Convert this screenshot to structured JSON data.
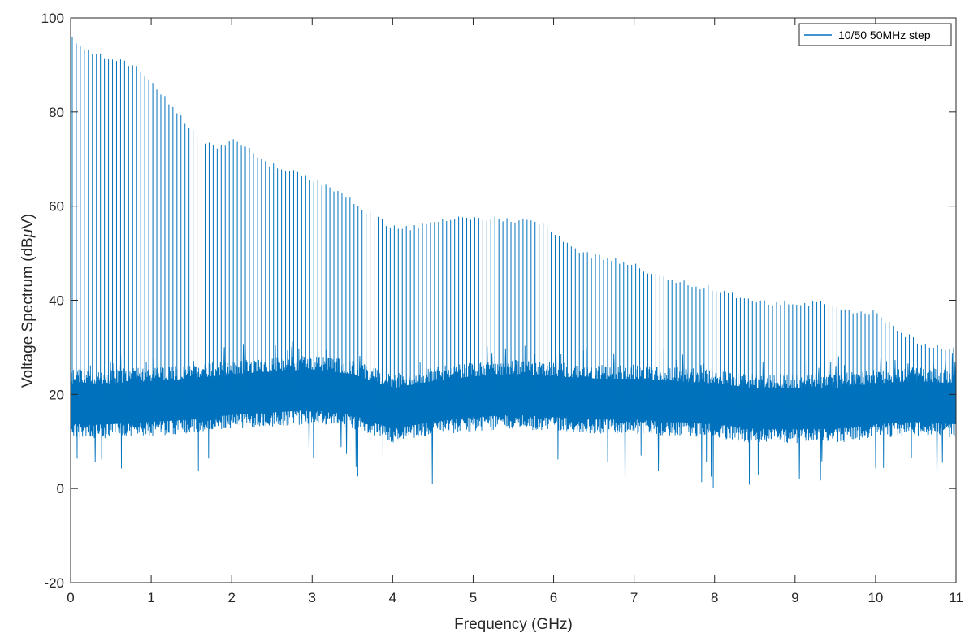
{
  "chart_data": {
    "type": "line",
    "title": "",
    "xlabel": "Frequency (GHz)",
    "ylabel_prefix": "Voltage Spectrum (dB",
    "ylabel_mu": "μ",
    "ylabel_suffix": "V)",
    "xlim": [
      0,
      11
    ],
    "ylim": [
      -20,
      100
    ],
    "x_ticks": [
      0,
      1,
      2,
      3,
      4,
      5,
      6,
      7,
      8,
      9,
      10,
      11
    ],
    "y_ticks": [
      -20,
      0,
      20,
      40,
      60,
      80,
      100
    ],
    "grid": false,
    "legend_position": "top-right",
    "colors": {
      "series": "#0072BD",
      "axes": "#262626",
      "legend_border": "#262626"
    },
    "series": [
      {
        "name": "10/50 50MHz step",
        "description_points": {
          "peak_step_GHz": 0.05,
          "peak_envelope": {
            "x": [
              0.0,
              0.1,
              0.3,
              0.5,
              0.7,
              0.9,
              1.0,
              1.2,
              1.4,
              1.6,
              1.8,
              2.0,
              2.2,
              2.4,
              2.6,
              2.8,
              3.0,
              3.2,
              3.4,
              3.6,
              3.8,
              4.0,
              4.2,
              4.4,
              4.6,
              4.8,
              5.0,
              5.2,
              5.4,
              5.6,
              5.8,
              6.0,
              6.2,
              6.4,
              6.6,
              6.8,
              7.0,
              7.2,
              7.4,
              7.6,
              7.8,
              8.0,
              8.2,
              8.4,
              8.6,
              8.8,
              9.0,
              9.2,
              9.4,
              9.6,
              9.8,
              10.0,
              10.2,
              10.4,
              10.6,
              10.8,
              11.0
            ],
            "y": [
              96.5,
              95,
              93,
              92,
              91,
              89,
              87,
              83,
              79,
              75,
              73,
              74.5,
              73,
              70,
              68.5,
              67.5,
              66,
              65,
              63,
              60.5,
              58,
              56,
              56,
              56.5,
              57.5,
              58,
              58,
              58,
              57.5,
              57.5,
              57,
              55,
              52,
              50.5,
              49.5,
              49,
              48,
              46.5,
              45,
              44.5,
              43.5,
              43,
              42,
              40.5,
              40,
              40,
              40,
              40,
              40,
              39,
              38,
              38,
              35,
              33,
              31,
              30.5,
              30
            ]
          },
          "noise_band_center": {
            "x": [
              0,
              0.5,
              1,
              1.5,
              2,
              2.5,
              3,
              3.5,
              4,
              4.5,
              5,
              5.5,
              6,
              6.5,
              7,
              7.5,
              8,
              8.5,
              9,
              9.5,
              10,
              10.5,
              11
            ],
            "y": [
              18,
              18,
              18.5,
              19,
              20,
              20.5,
              21,
              20,
              17,
              18.5,
              19.5,
              20,
              19.5,
              19,
              19,
              18.5,
              18,
              17,
              17,
              17,
              18,
              18.5,
              18
            ]
          },
          "noise_band_halfwidth": 7
        }
      }
    ]
  }
}
